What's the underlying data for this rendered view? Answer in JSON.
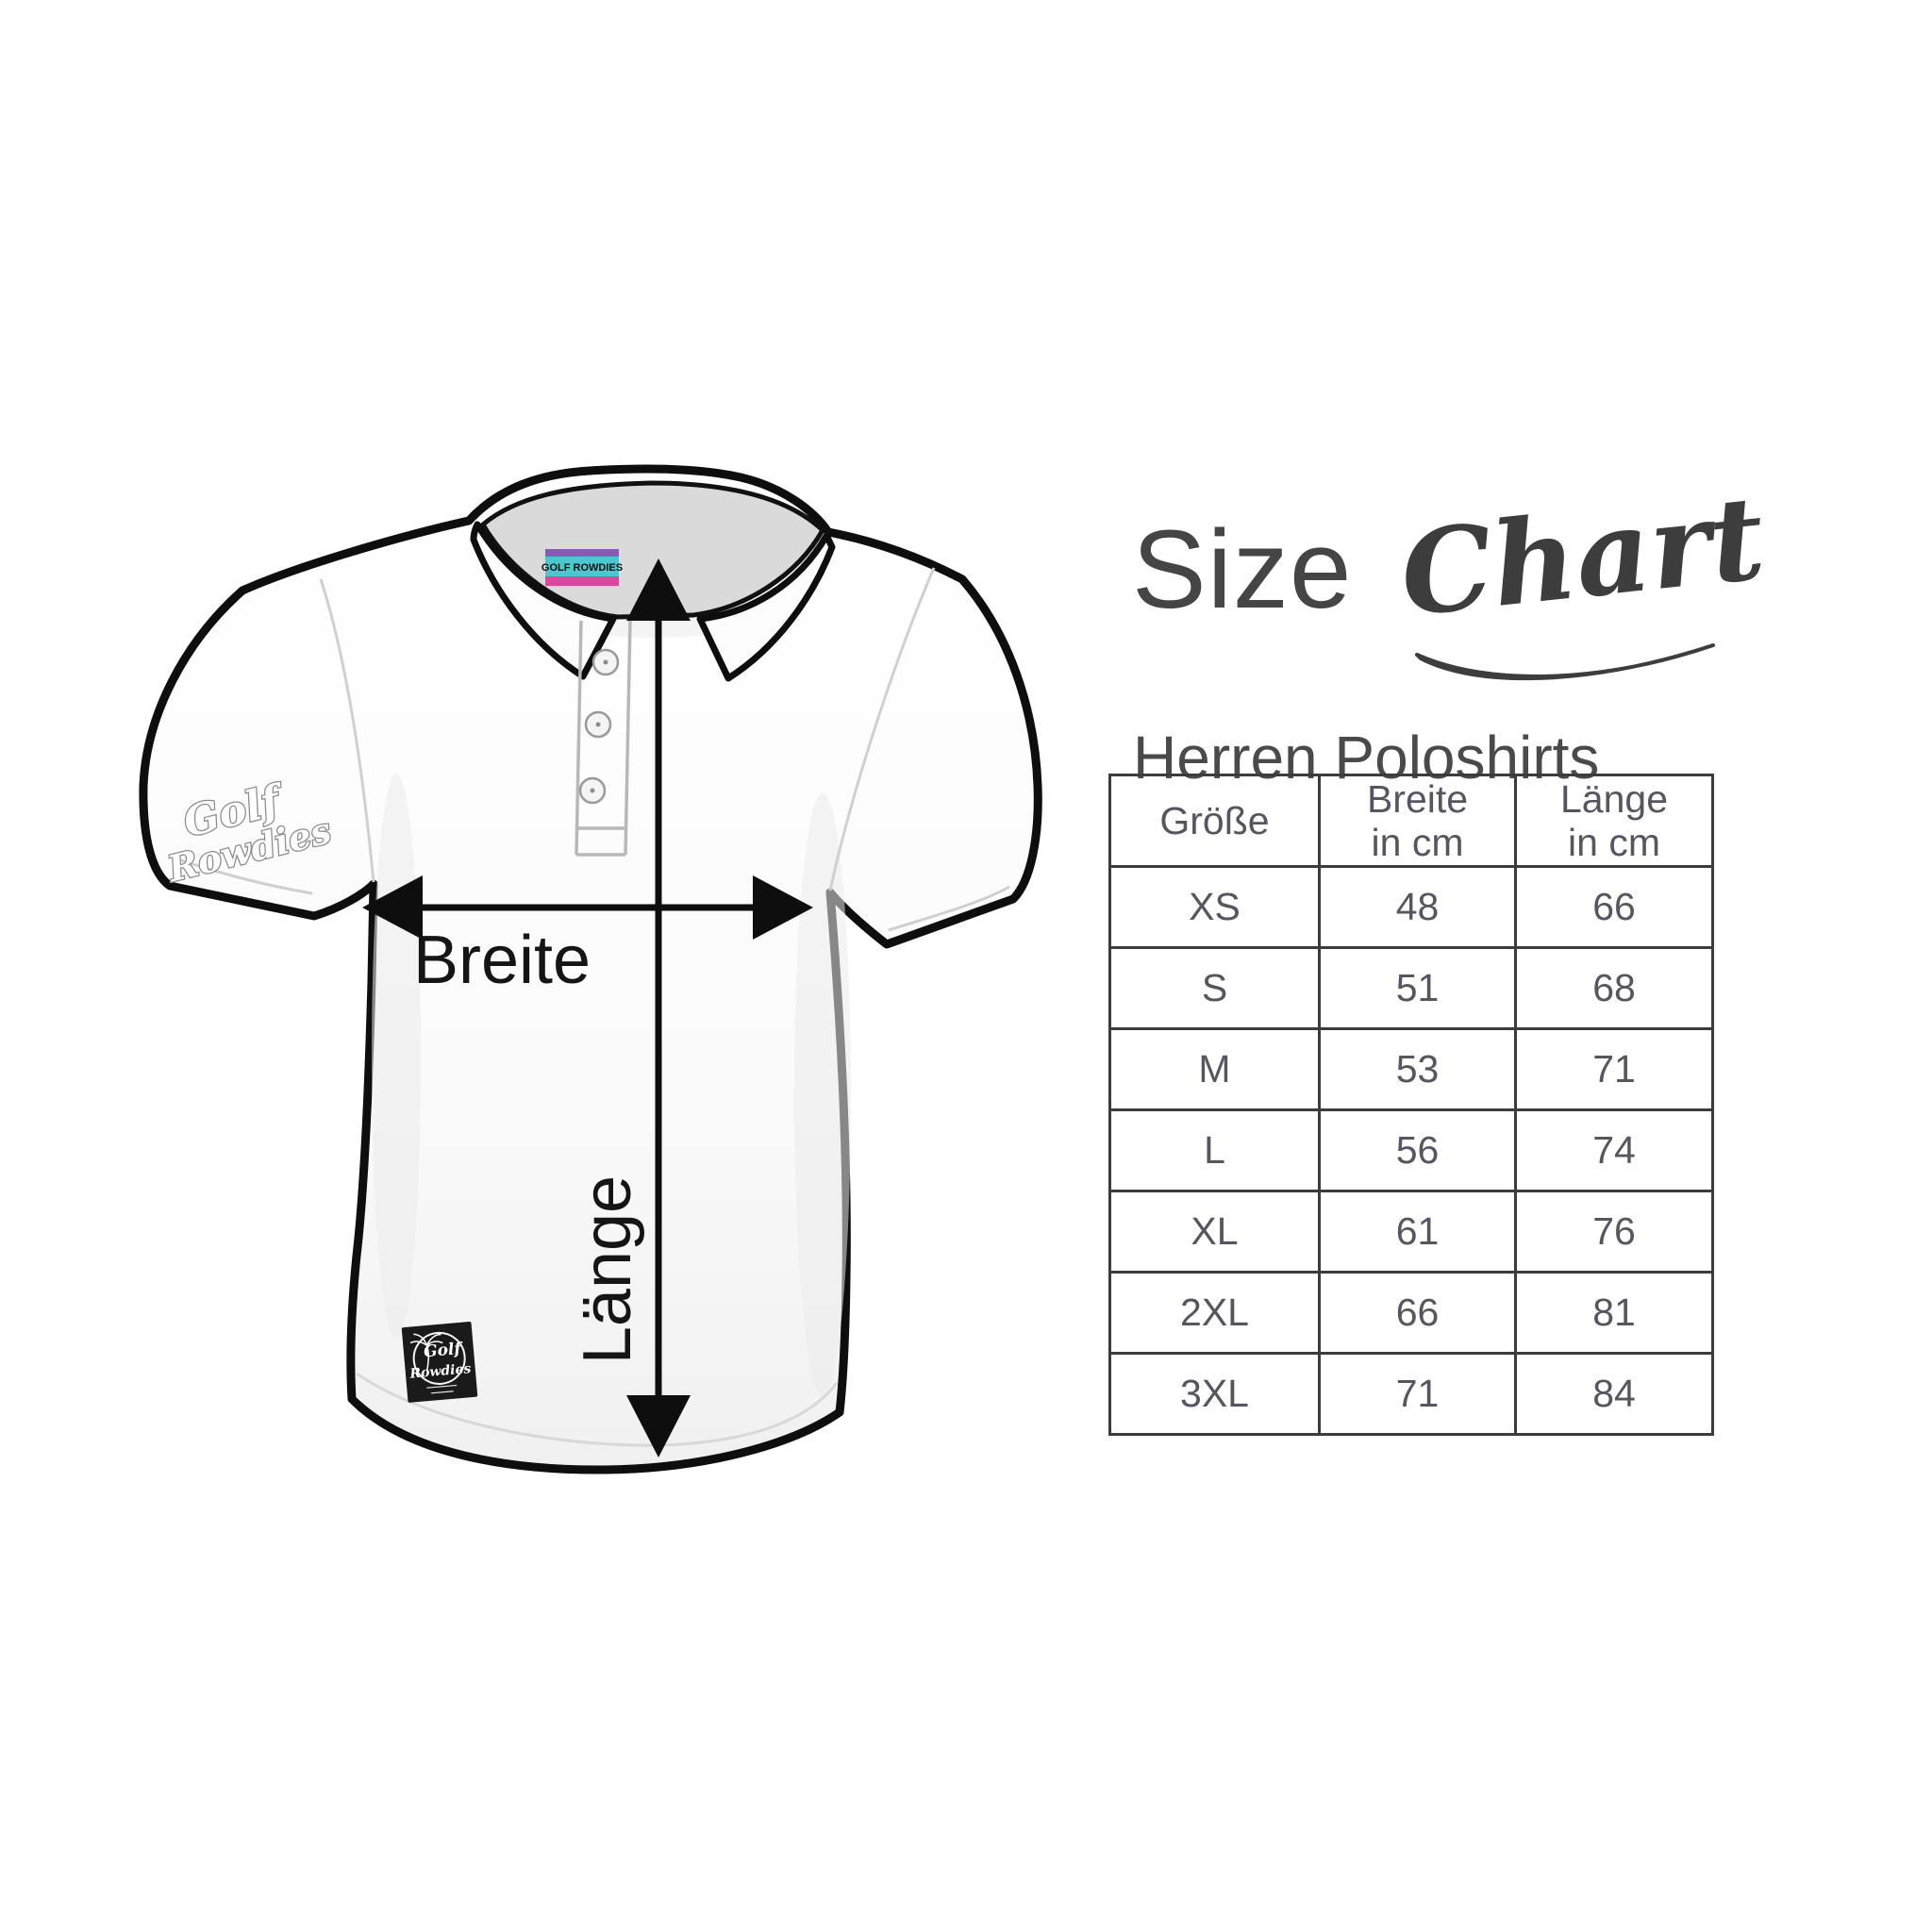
{
  "chart_data": {
    "type": "table",
    "title": "Size Chart",
    "subtitle": "Herren Poloshirts",
    "columns": [
      "Größe",
      "Breite in cm",
      "Länge in cm"
    ],
    "rows": [
      [
        "XS",
        48,
        66
      ],
      [
        "S",
        51,
        68
      ],
      [
        "M",
        53,
        71
      ],
      [
        "L",
        56,
        74
      ],
      [
        "XL",
        61,
        76
      ],
      [
        "2XL",
        66,
        81
      ],
      [
        "3XL",
        71,
        84
      ]
    ],
    "annotations": [
      "Breite",
      "Länge"
    ]
  },
  "title": {
    "size_word": "Size",
    "chart_word": "Chart",
    "subtitle": "Herren Poloshirts"
  },
  "size_table": {
    "header": {
      "col1": "Größe",
      "col2_line1": "Breite",
      "col2_line2": "in cm",
      "col3_line1": "Länge",
      "col3_line2": "in cm"
    },
    "rows": [
      {
        "size": "XS",
        "breite": "48",
        "laenge": "66"
      },
      {
        "size": "S",
        "breite": "51",
        "laenge": "68"
      },
      {
        "size": "M",
        "breite": "53",
        "laenge": "71"
      },
      {
        "size": "L",
        "breite": "56",
        "laenge": "74"
      },
      {
        "size": "XL",
        "breite": "61",
        "laenge": "76"
      },
      {
        "size": "2XL",
        "breite": "66",
        "laenge": "81"
      },
      {
        "size": "3XL",
        "breite": "71",
        "laenge": "84"
      }
    ],
    "border_color": "#3c3c3c",
    "text_color": "#565660"
  },
  "shirt": {
    "width_label": "Breite",
    "length_label": "Länge",
    "collar_tag": "GOLF ROWDIES",
    "sleeve_line1": "Golf",
    "sleeve_line2": "Rowdies",
    "patch_line1": "Golf",
    "patch_line2": "Rowdies",
    "colors": {
      "outline": "#0e0e0e",
      "arrow": "#0e0e0e",
      "tag_teal": "#4cc7ce",
      "tag_magenta": "#d8489f",
      "tag_purple": "#8a5bb5",
      "patch_black": "#1a1a1a"
    }
  }
}
